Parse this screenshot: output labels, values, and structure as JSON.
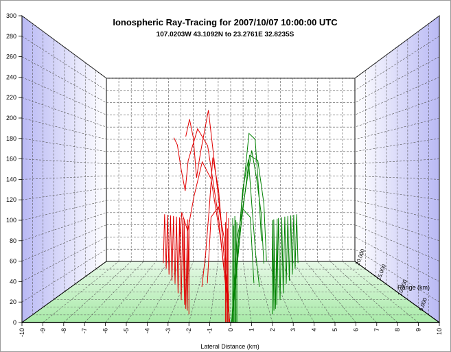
{
  "chart_data": {
    "type": "line",
    "title": "Ionospheric Ray-Tracing for 2007/10/07 10:00:00 UTC",
    "subtitle": "107.0203W 43.1092N to  23.2761E 32.8235S",
    "xlabel": "Lateral Distance (km)",
    "ylabel": "",
    "zlabel": "Range (km)",
    "xlim": [
      -10,
      10
    ],
    "ylim": [
      0,
      300
    ],
    "zlim": [
      0,
      20000
    ],
    "x_ticks": [
      "-10",
      "-9",
      "-8",
      "-7",
      "-6",
      "-5",
      "-4",
      "-3",
      "-2",
      "-1",
      "0",
      "1",
      "2",
      "3",
      "4",
      "5",
      "6",
      "7",
      "8",
      "9",
      "10"
    ],
    "y_ticks": [
      "0",
      "20",
      "40",
      "60",
      "80",
      "100",
      "120",
      "140",
      "160",
      "180",
      "200",
      "220",
      "240",
      "260",
      "280",
      "300"
    ],
    "z_ticks": [
      "5,000",
      "10,000",
      "15,000",
      "20,000"
    ],
    "grid": true,
    "legend": "none",
    "series": [
      {
        "color": "#e00000",
        "rays": [
          [
            [
              -0.1,
              0,
              0
            ],
            [
              -0.1,
              60,
              0
            ],
            [
              -0.1,
              102,
              0
            ],
            [
              -0.1,
              60,
              0
            ],
            [
              -0.1,
              2,
              0
            ]
          ],
          [
            [
              -0.2,
              0,
              0
            ],
            [
              -0.2,
              108,
              0
            ],
            [
              -0.2,
              0,
              0
            ]
          ],
          [
            [
              -0.15,
              0,
              0
            ],
            [
              -0.15,
              92,
              0
            ],
            [
              -0.15,
              0,
              0
            ]
          ],
          [
            [
              -0.25,
              0,
              0
            ],
            [
              -0.25,
              98,
              0
            ],
            [
              -0.25,
              0,
              0
            ]
          ],
          [
            [
              -0.05,
              0,
              0
            ],
            [
              -0.3,
              80,
              800
            ],
            [
              -0.6,
              112,
              1500
            ],
            [
              -1.0,
              100,
              3000
            ],
            [
              -1.2,
              30,
              3500
            ]
          ],
          [
            [
              -0.05,
              0,
              0
            ],
            [
              -0.6,
              130,
              1500
            ],
            [
              -0.9,
              162,
              2500
            ],
            [
              -1.1,
              110,
              3400
            ],
            [
              -1.3,
              60,
              3800
            ],
            [
              -1.5,
              25,
              4000
            ]
          ],
          [
            [
              -0.05,
              0,
              0
            ],
            [
              -0.5,
              80,
              1500
            ],
            [
              -1.0,
              140,
              3000
            ],
            [
              -1.5,
              158,
              4500
            ],
            [
              -2.0,
              120,
              6000
            ],
            [
              -2.4,
              80,
              7000
            ],
            [
              -2.8,
              100,
              8000
            ],
            [
              -3.0,
              40,
              8500
            ]
          ],
          [
            [
              -0.05,
              0,
              0
            ],
            [
              -0.6,
              100,
              2000
            ],
            [
              -1.2,
              175,
              4000
            ],
            [
              -1.8,
              195,
              6000
            ],
            [
              -2.4,
              160,
              7500
            ],
            [
              -2.6,
              125,
              8000
            ],
            [
              -2.9,
              150,
              9000
            ],
            [
              -3.2,
              180,
              10000
            ],
            [
              -3.5,
              190,
              11000
            ]
          ],
          [
            [
              -0.05,
              0,
              0
            ],
            [
              -0.5,
              100,
              2500
            ],
            [
              -1.2,
              215,
              5500
            ],
            [
              -1.7,
              170,
              7500
            ],
            [
              -2.0,
              140,
              9000
            ],
            [
              -2.3,
              190,
              11000
            ],
            [
              -2.6,
              215,
              12000
            ],
            [
              -3.0,
              195,
              14000
            ]
          ],
          [
            [
              -2.0,
              8,
              0
            ],
            [
              -2.0,
              100,
              200
            ],
            [
              -2.1,
              10,
              600
            ],
            [
              -2.1,
              100,
              800
            ],
            [
              -2.2,
              10,
              1200
            ],
            [
              -2.3,
              100,
              1500
            ],
            [
              -2.3,
              12,
              1900
            ],
            [
              -2.4,
              100,
              2200
            ],
            [
              -2.5,
              15,
              2600
            ],
            [
              -2.6,
              100,
              2900
            ],
            [
              -2.7,
              20,
              3300
            ],
            [
              -2.8,
              100,
              3600
            ],
            [
              -2.9,
              28,
              4000
            ],
            [
              -3.0,
              100,
              4300
            ],
            [
              -3.1,
              30,
              4600
            ],
            [
              -3.2,
              100,
              4900
            ],
            [
              -3.3,
              35,
              5200
            ],
            [
              -3.4,
              100,
              5500
            ],
            [
              -3.5,
              40,
              5800
            ],
            [
              -3.6,
              100,
              6000
            ],
            [
              -3.7,
              45,
              6300
            ]
          ]
        ]
      },
      {
        "color": "#008000",
        "rays": [
          [
            [
              0.1,
              0,
              0
            ],
            [
              0.1,
              60,
              0
            ],
            [
              0.1,
              102,
              0
            ],
            [
              0.1,
              60,
              0
            ],
            [
              0.1,
              2,
              0
            ]
          ],
          [
            [
              0.2,
              0,
              0
            ],
            [
              0.2,
              104,
              0
            ],
            [
              0.2,
              0,
              0
            ]
          ],
          [
            [
              0.15,
              0,
              0
            ],
            [
              0.15,
              95,
              0
            ],
            [
              0.15,
              0,
              0
            ]
          ],
          [
            [
              0.25,
              0,
              0
            ],
            [
              0.25,
              100,
              0
            ],
            [
              0.25,
              0,
              0
            ]
          ],
          [
            [
              0.3,
              0,
              0
            ],
            [
              0.3,
              98,
              0
            ],
            [
              0.3,
              0,
              0
            ]
          ],
          [
            [
              0.05,
              0,
              0
            ],
            [
              0.3,
              80,
              800
            ],
            [
              0.6,
              110,
              1500
            ],
            [
              1.0,
              100,
              3000
            ],
            [
              1.2,
              30,
              3500
            ]
          ],
          [
            [
              0.05,
              0,
              0
            ],
            [
              0.6,
              130,
              1500
            ],
            [
              0.9,
              160,
              2500
            ],
            [
              1.1,
              110,
              3400
            ],
            [
              1.3,
              60,
              3800
            ],
            [
              1.5,
              25,
              4000
            ]
          ],
          [
            [
              0.05,
              0,
              0
            ],
            [
              0.6,
              110,
              2000
            ],
            [
              1.1,
              170,
              4000
            ],
            [
              1.4,
              140,
              5500
            ],
            [
              1.7,
              100,
              7000
            ],
            [
              1.9,
              40,
              8000
            ]
          ],
          [
            [
              0.05,
              0,
              0
            ],
            [
              0.5,
              90,
              2000
            ],
            [
              1.0,
              165,
              4500
            ],
            [
              1.5,
              160,
              6500
            ],
            [
              1.9,
              110,
              8000
            ],
            [
              2.1,
              40,
              9000
            ]
          ],
          [
            [
              0.05,
              0,
              0
            ],
            [
              0.5,
              100,
              2500
            ],
            [
              1.0,
              190,
              6000
            ],
            [
              1.4,
              185,
              8000
            ],
            [
              1.7,
              120,
              10000
            ],
            [
              1.9,
              60,
              11000
            ]
          ],
          [
            [
              2.0,
              8,
              0
            ],
            [
              2.0,
              100,
              200
            ],
            [
              2.1,
              10,
              600
            ],
            [
              2.1,
              100,
              800
            ],
            [
              2.2,
              10,
              1200
            ],
            [
              2.3,
              100,
              1500
            ],
            [
              2.3,
              12,
              1900
            ],
            [
              2.4,
              100,
              2200
            ],
            [
              2.5,
              15,
              2600
            ],
            [
              2.6,
              100,
              2900
            ],
            [
              2.7,
              20,
              3300
            ],
            [
              2.8,
              100,
              3600
            ],
            [
              2.9,
              28,
              4000
            ],
            [
              3.0,
              100,
              4300
            ],
            [
              3.1,
              30,
              4600
            ],
            [
              3.2,
              100,
              4900
            ],
            [
              3.3,
              35,
              5200
            ],
            [
              3.4,
              100,
              5500
            ],
            [
              3.5,
              40,
              5800
            ],
            [
              3.6,
              100,
              6000
            ],
            [
              3.7,
              45,
              6300
            ]
          ]
        ]
      }
    ]
  }
}
